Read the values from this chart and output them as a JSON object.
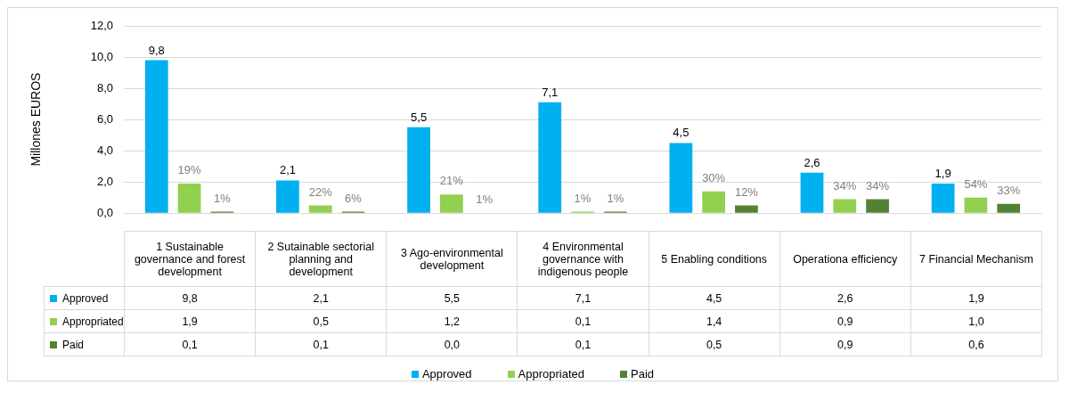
{
  "chart_data": {
    "type": "bar",
    "ylabel": "Millones EUROS",
    "categories": [
      "1 Sustainable governance and forest development",
      "2 Sutainable sectorial planning and development",
      "3 Ago-environmental development",
      "4 Environmental governance with indigenous people",
      "5 Enabling conditions",
      "Operationa efficiency",
      "7 Financial Mechanism"
    ],
    "series": [
      {
        "name": "Approved",
        "color": "#00b0f0",
        "values": [
          9.8,
          2.1,
          5.5,
          7.1,
          4.5,
          2.6,
          1.9
        ],
        "value_labels": [
          "9,8",
          "2,1",
          "5,5",
          "7,1",
          "4,5",
          "2,6",
          "1,9"
        ]
      },
      {
        "name": "Appropriated",
        "color": "#92d050",
        "values": [
          1.9,
          0.5,
          1.2,
          0.1,
          1.4,
          0.9,
          1.0
        ],
        "value_labels": [
          "1,9",
          "0,5",
          "1,2",
          "0,1",
          "1,4",
          "0,9",
          "1,0"
        ]
      },
      {
        "name": "Paid",
        "color": "#548235",
        "values": [
          0.1,
          0.1,
          0.0,
          0.1,
          0.5,
          0.9,
          0.6
        ],
        "value_labels": [
          "0,1",
          "0,1",
          "0,0",
          "0,1",
          "0,5",
          "0,9",
          "0,6"
        ]
      }
    ],
    "annotations": [
      "19%",
      "22%",
      "21%",
      "1%",
      "30%",
      "34%",
      "54%",
      "1%",
      "6%",
      "1%",
      "1%",
      "12%",
      "34%",
      "33%"
    ],
    "ylim": [
      0,
      12
    ],
    "yticks": [
      {
        "value": 0,
        "label": "0,0"
      },
      {
        "value": 2,
        "label": "2,0"
      },
      {
        "value": 4,
        "label": "4,0"
      },
      {
        "value": 6,
        "label": "6,0"
      },
      {
        "value": 8,
        "label": "8,0"
      },
      {
        "value": 10,
        "label": "10,0"
      },
      {
        "value": 12,
        "label": "12,0"
      }
    ],
    "grid": "y",
    "legend": "bottom",
    "data_labels": true
  }
}
